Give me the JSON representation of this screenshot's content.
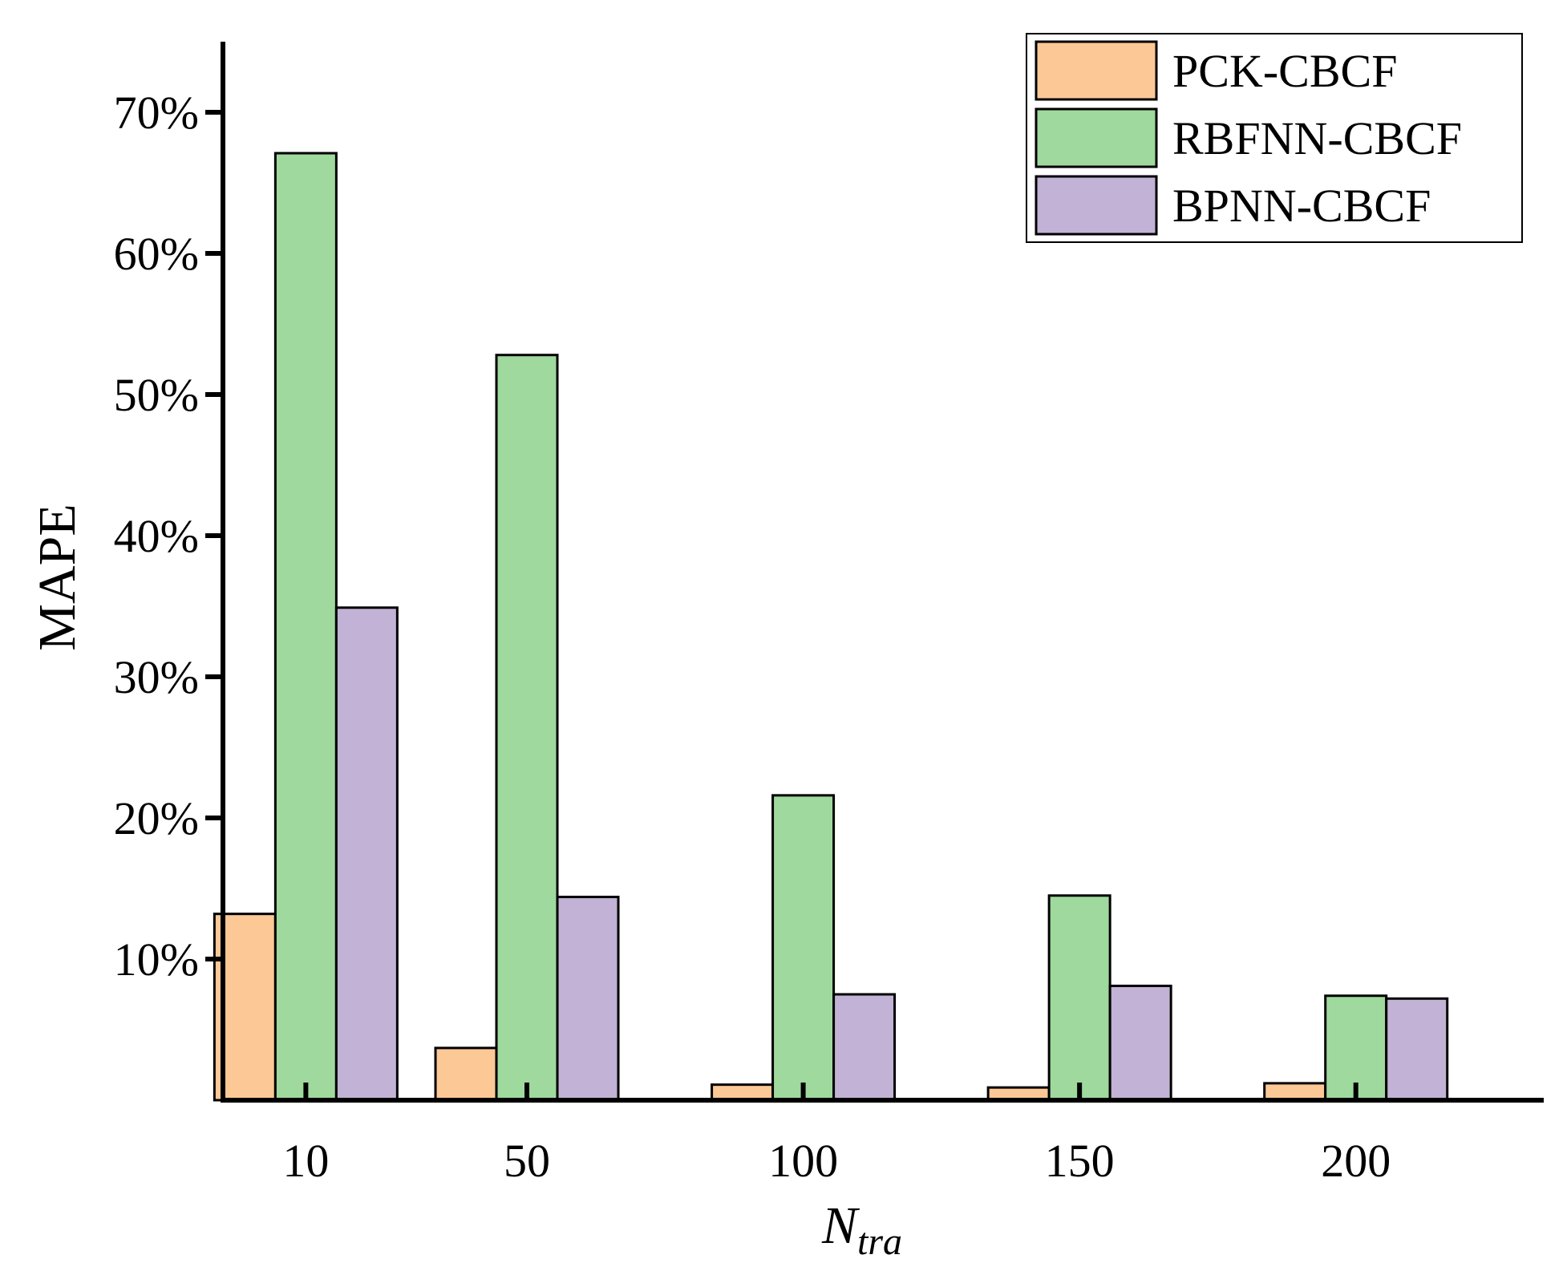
{
  "chart_data": {
    "type": "bar",
    "categories": [
      "10",
      "50",
      "100",
      "150",
      "200"
    ],
    "x": [
      10,
      50,
      100,
      150,
      200
    ],
    "series": [
      {
        "name": "PCK-CBCF",
        "values": [
          13.2,
          3.7,
          1.1,
          0.9,
          1.2
        ],
        "color": "#fbc896"
      },
      {
        "name": "RBFNN-CBCF",
        "values": [
          67.1,
          52.8,
          21.6,
          14.5,
          7.4
        ],
        "color": "#9fd99d"
      },
      {
        "name": "BPNN-CBCF",
        "values": [
          34.9,
          14.4,
          7.5,
          8.1,
          7.2
        ],
        "color": "#c2b2d6"
      }
    ],
    "yticks": [
      10,
      20,
      30,
      40,
      50,
      60,
      70
    ],
    "ytick_labels": [
      "10%",
      "20%",
      "30%",
      "40%",
      "50%",
      "60%",
      "70%"
    ],
    "ylim": [
      0,
      75
    ],
    "xlim": [
      -5,
      234
    ],
    "ylabel": "MAPE",
    "xlabel": {
      "main": "N",
      "sub": "tra"
    },
    "grid": false,
    "legend_position": "top-right"
  }
}
